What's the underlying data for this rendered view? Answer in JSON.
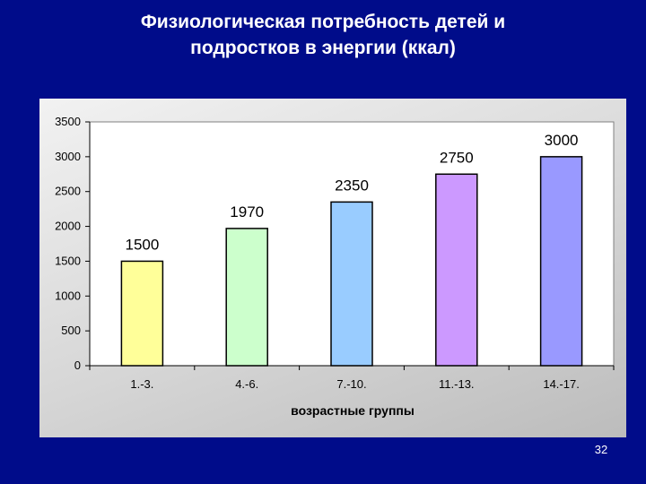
{
  "slide": {
    "title_line1": "Физиологическая потребность детей и",
    "title_line2": "подростков в энергии (ккал)",
    "page_number": "32",
    "background_color": "#000c8a"
  },
  "chart_data": {
    "type": "bar",
    "title": "",
    "xlabel": "возрастные группы",
    "ylabel": "",
    "categories": [
      "1.-3.",
      "4.-6.",
      "7.-10.",
      "11.-13.",
      "14.-17."
    ],
    "values": [
      1500,
      1970,
      2350,
      2750,
      3000
    ],
    "data_labels": [
      "1500",
      "1970",
      "2350",
      "2750",
      "3000"
    ],
    "colors": [
      "#ffff99",
      "#ccffcc",
      "#99ccff",
      "#cc99ff",
      "#9999ff"
    ],
    "ylim": [
      0,
      3500
    ],
    "yticks": [
      0,
      500,
      1000,
      1500,
      2000,
      2500,
      3000,
      3500
    ],
    "grid": false,
    "legend": false
  }
}
